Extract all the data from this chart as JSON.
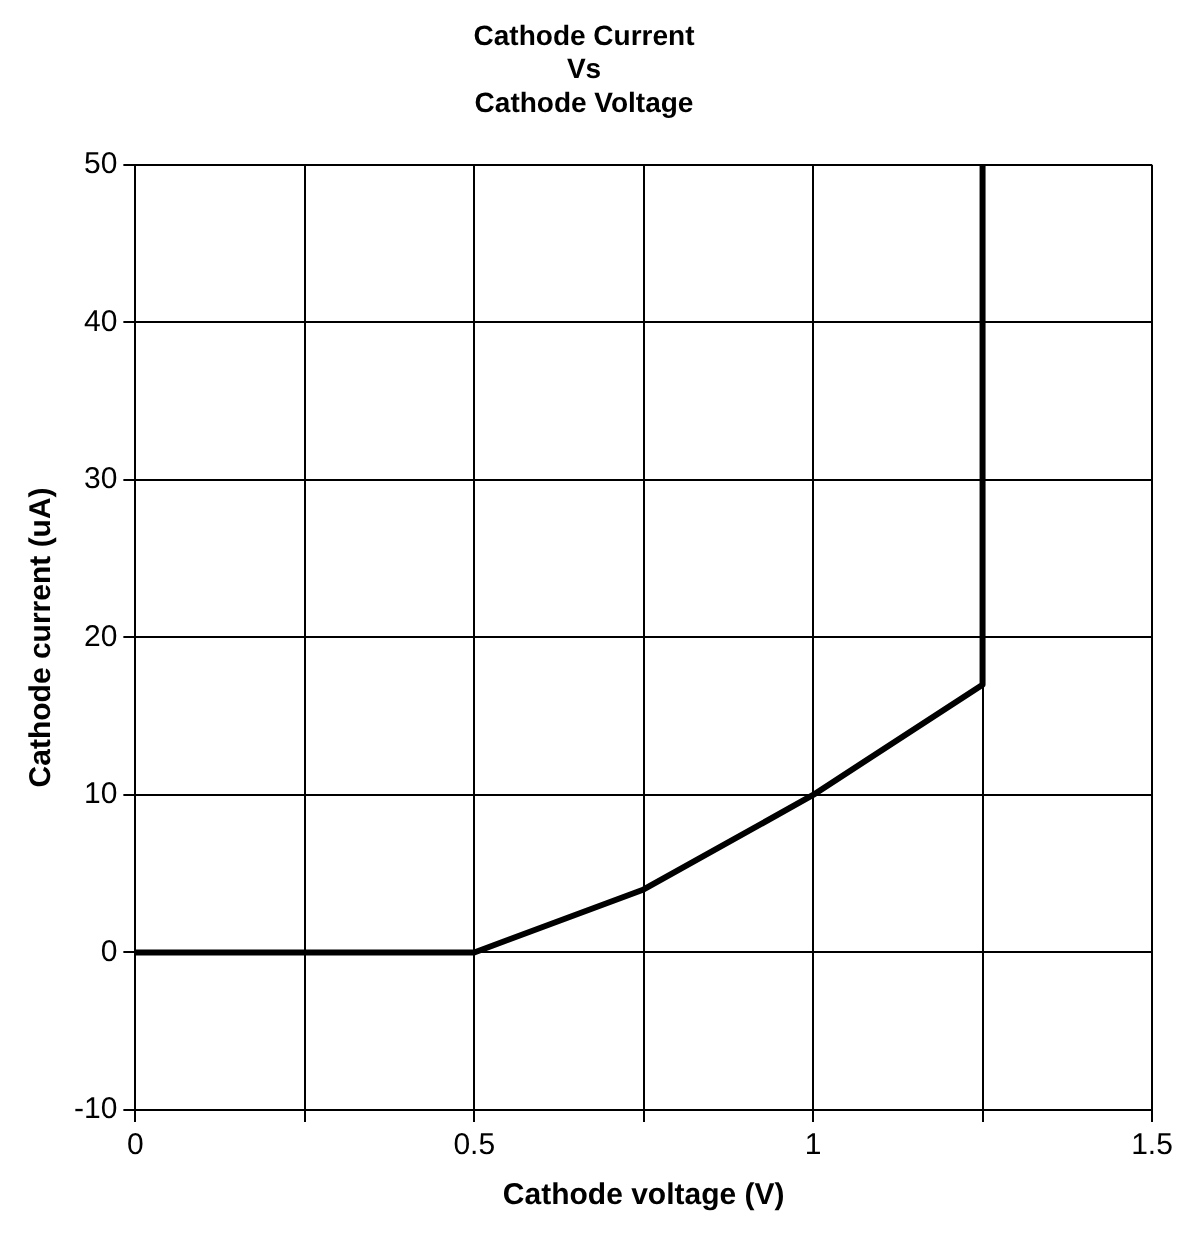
{
  "chart_data": {
    "type": "line",
    "title": "Cathode Current\nVs\nCathode Voltage",
    "xlabel": "Cathode voltage (V)",
    "ylabel": "Cathode current (uA)",
    "x": [
      0,
      0.5,
      0.75,
      1,
      1.25,
      1.25
    ],
    "series": [
      {
        "color": "#000000",
        "values": [
          0,
          0,
          4,
          10,
          17,
          50
        ]
      }
    ],
    "xlim": [
      0,
      1.5
    ],
    "xticks": [
      0,
      {
        "value": 0.25,
        "label": null
      },
      0.5,
      {
        "value": 0.75,
        "label": null
      },
      1,
      {
        "value": 1.25,
        "label": null
      },
      1.5
    ],
    "ylim": [
      -10,
      50
    ],
    "yticks": [
      -10,
      0,
      10,
      20,
      30,
      40,
      50
    ],
    "grid": true,
    "legend": false,
    "marker": "none",
    "line_style": "solid"
  }
}
